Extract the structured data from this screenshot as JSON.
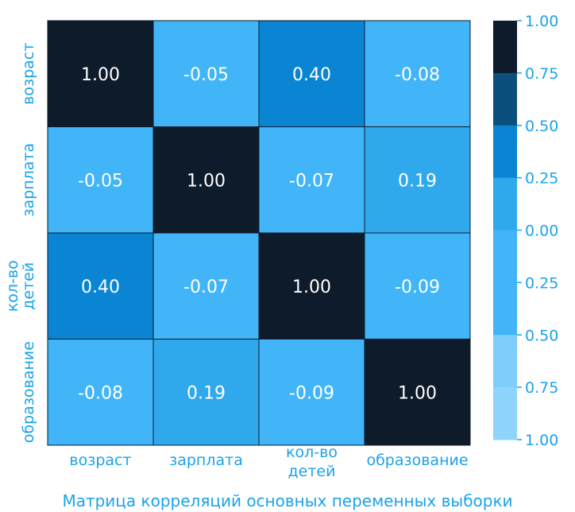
{
  "chart_data": {
    "type": "heatmap",
    "title": "Матрица корреляций основных переменных выборки",
    "x_categories": [
      "возраст",
      "зарплата",
      "кол-во детей",
      "образование"
    ],
    "y_categories": [
      "возраст",
      "зарплата",
      "кол-во детей",
      "образование"
    ],
    "x_tick_lines": [
      [
        "возраст"
      ],
      [
        "зарплата"
      ],
      [
        "кол-во",
        "детей"
      ],
      [
        "образование"
      ]
    ],
    "y_tick_lines": [
      [
        "возраст"
      ],
      [
        "зарплата"
      ],
      [
        "кол-во",
        "детей"
      ],
      [
        "образование"
      ]
    ],
    "values": [
      [
        1.0,
        -0.05,
        0.4,
        -0.08
      ],
      [
        -0.05,
        1.0,
        -0.07,
        0.19
      ],
      [
        0.4,
        -0.07,
        1.0,
        -0.09
      ],
      [
        -0.08,
        0.19,
        -0.09,
        1.0
      ]
    ],
    "cell_labels": [
      [
        "1.00",
        "-0.05",
        "0.40",
        "-0.08"
      ],
      [
        "-0.05",
        "1.00",
        "-0.07",
        "0.19"
      ],
      [
        "0.40",
        "-0.07",
        "1.00",
        "-0.09"
      ],
      [
        "-0.08",
        "0.19",
        "-0.09",
        "1.00"
      ]
    ],
    "colorbar": {
      "ticks": [
        "1.00",
        "0.75",
        "0.50",
        "0.25",
        "0.00",
        "0.25",
        "0.50",
        "0.75",
        "1.00"
      ],
      "bands": [
        {
          "from": 0.75,
          "to": 1.0,
          "color": "#0d1b2a"
        },
        {
          "from": 0.5,
          "to": 0.75,
          "color": "#0b4f7c"
        },
        {
          "from": 0.25,
          "to": 0.5,
          "color": "#0a85d4"
        },
        {
          "from": 0.0,
          "to": 0.25,
          "color": "#2fa8ec"
        },
        {
          "from": -0.25,
          "to": 0.0,
          "color": "#41b5f8"
        },
        {
          "from": -0.5,
          "to": -0.25,
          "color": "#41b5f8"
        },
        {
          "from": -0.75,
          "to": -0.5,
          "color": "#7fcdfb"
        },
        {
          "from": -1.0,
          "to": -0.75,
          "color": "#8fd4fc"
        }
      ]
    },
    "colors": {
      "text": "#1ba3e8",
      "cell_text": "#ffffff",
      "grid_line": "#0d1b2a"
    }
  }
}
